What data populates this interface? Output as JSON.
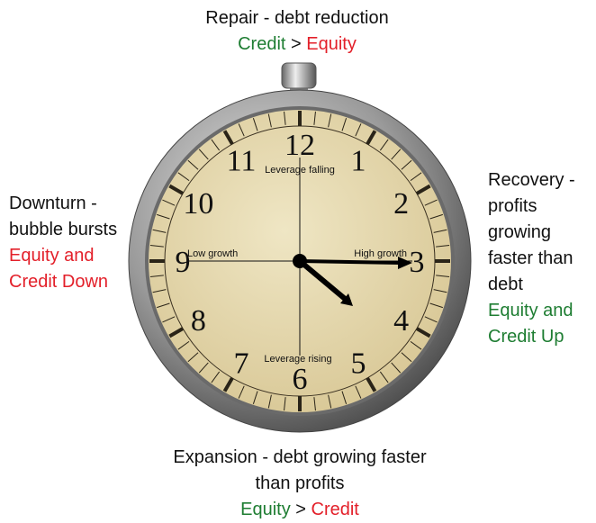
{
  "top": {
    "title": "Repair - debt reduction",
    "first": "Credit",
    "relation": ">",
    "second": "Equity"
  },
  "right": {
    "title": "Recovery - profits growing faster than debt",
    "status": "Equity and Credit Up"
  },
  "left": {
    "title": "Downturn - bubble bursts",
    "status": "Equity and Credit Down"
  },
  "bottom": {
    "title": "Expansion - debt growing faster than profits",
    "first": "Equity",
    "relation": ">",
    "second": "Credit"
  },
  "clock": {
    "numerals": [
      "12",
      "1",
      "2",
      "3",
      "4",
      "5",
      "6",
      "7",
      "8",
      "9",
      "10",
      "11"
    ],
    "top_axis": "Leverage falling",
    "left_axis": "Low growth",
    "right_axis": "High growth",
    "bottom_axis": "Leverage rising"
  }
}
